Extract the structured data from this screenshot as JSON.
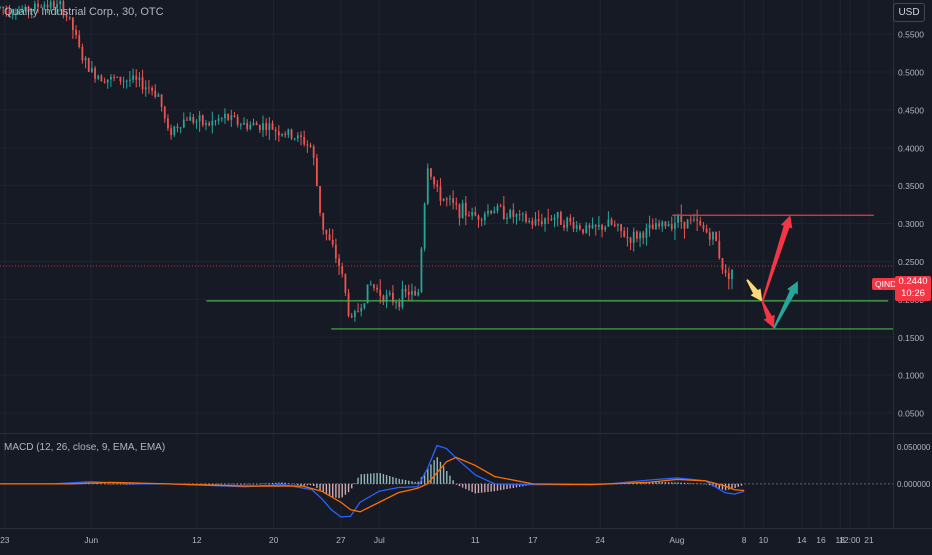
{
  "header": {
    "symbol_line": "Quality Industrial Corp., 30, OTC",
    "currency": "USD"
  },
  "current": {
    "ticker": "QIND",
    "price": "0.2440",
    "countdown": "10:26"
  },
  "macd": {
    "label": "MACD (12, 26, close, 9, EMA, EMA)",
    "ticks": [
      "0.050000",
      "0.000000"
    ]
  },
  "chart_data": [
    {
      "type": "candlestick",
      "title": "",
      "y_ticks": [
        0.05,
        0.1,
        0.15,
        0.2,
        0.25,
        0.3,
        0.35,
        0.4,
        0.45,
        0.5,
        0.55
      ],
      "y_tick_labels": [
        "0.0500",
        "0.1000",
        "0.1500",
        "0.2000",
        "0.2500",
        "0.3000",
        "0.3500",
        "0.4000",
        "0.4500",
        "0.5000",
        "0.5500"
      ],
      "x_tick_labels": [
        {
          "label": "23",
          "day": 23
        },
        {
          "label": "Jun",
          "day": 32
        },
        {
          "label": "12",
          "day": 43
        },
        {
          "label": "20",
          "day": 51
        },
        {
          "label": "27",
          "day": 58
        },
        {
          "label": "Jul",
          "day": 62
        },
        {
          "label": "11",
          "day": 72
        },
        {
          "label": "17",
          "day": 78
        },
        {
          "label": "24",
          "day": 85
        },
        {
          "label": "Aug",
          "day": 93
        },
        {
          "label": "8",
          "day": 100
        },
        {
          "label": "10",
          "day": 102
        },
        {
          "label": "14",
          "day": 106
        },
        {
          "label": "16",
          "day": 108
        },
        {
          "label": "18",
          "day": 110
        },
        {
          "label": "12:00",
          "day": 111
        },
        {
          "label": "21",
          "day": 113
        }
      ],
      "x_range_days": [
        22.5,
        115.5
      ],
      "y_range": [
        0.025,
        0.595
      ],
      "price_path": [
        [
          22.5,
          0.585
        ],
        [
          25,
          0.58
        ],
        [
          27,
          0.59
        ],
        [
          29,
          0.585
        ],
        [
          30,
          0.56
        ],
        [
          31,
          0.52
        ],
        [
          32,
          0.5
        ],
        [
          34,
          0.49
        ],
        [
          36,
          0.49
        ],
        [
          38,
          0.48
        ],
        [
          39,
          0.47
        ],
        [
          40,
          0.42
        ],
        [
          42,
          0.44
        ],
        [
          44,
          0.43
        ],
        [
          46,
          0.44
        ],
        [
          48,
          0.43
        ],
        [
          50,
          0.43
        ],
        [
          52,
          0.42
        ],
        [
          54,
          0.41
        ],
        [
          55,
          0.4
        ],
        [
          56,
          0.3
        ],
        [
          57,
          0.27
        ],
        [
          58,
          0.24
        ],
        [
          59,
          0.17
        ],
        [
          60,
          0.19
        ],
        [
          61,
          0.22
        ],
        [
          62,
          0.21
        ],
        [
          63,
          0.2
        ],
        [
          64,
          0.2
        ],
        [
          65,
          0.21
        ],
        [
          66,
          0.2
        ],
        [
          67,
          0.38
        ],
        [
          68,
          0.34
        ],
        [
          70,
          0.32
        ],
        [
          72,
          0.31
        ],
        [
          74,
          0.32
        ],
        [
          76,
          0.31
        ],
        [
          78,
          0.3
        ],
        [
          80,
          0.31
        ],
        [
          82,
          0.3
        ],
        [
          84,
          0.29
        ],
        [
          86,
          0.3
        ],
        [
          88,
          0.28
        ],
        [
          90,
          0.29
        ],
        [
          92,
          0.3
        ],
        [
          93,
          0.305
        ],
        [
          95,
          0.3
        ],
        [
          97,
          0.28
        ],
        [
          98,
          0.23
        ],
        [
          99,
          0.244
        ]
      ],
      "horizontal_levels": [
        {
          "price": 0.311,
          "from_day": 92.5,
          "to_day": 113.5,
          "color": "#f23645"
        },
        {
          "price": 0.198,
          "from_day": 44,
          "to_day": 115,
          "color": "#4caf50"
        },
        {
          "price": 0.161,
          "from_day": 57,
          "to_day": 116,
          "color": "#4caf50"
        },
        {
          "price": 0.244,
          "from_day": 22.5,
          "to_day": 118,
          "color": "#f23645",
          "dotted": true
        }
      ],
      "arrows": [
        {
          "from": [
            100.3,
            0.226
          ],
          "to": [
            101.9,
            0.197
          ],
          "color": "#fdd87a"
        },
        {
          "from": [
            101.9,
            0.197
          ],
          "to": [
            103.1,
            0.162
          ],
          "color": "#f23645"
        },
        {
          "from": [
            101.9,
            0.197
          ],
          "to": [
            104.8,
            0.311
          ],
          "color": "#f23645"
        },
        {
          "from": [
            103.1,
            0.162
          ],
          "to": [
            105.6,
            0.224
          ],
          "color": "#26a69a"
        }
      ]
    },
    {
      "type": "macd",
      "title": "MACD (12, 26, close, 9, EMA, EMA)",
      "y_ticks": [
        0.05,
        0.0
      ],
      "y_range": [
        -0.06,
        0.065
      ],
      "macd_line": [
        [
          22.5,
          0.0
        ],
        [
          28,
          0.0
        ],
        [
          32,
          0.003
        ],
        [
          36,
          0.0
        ],
        [
          40,
          0.0
        ],
        [
          44,
          -0.002
        ],
        [
          48,
          -0.004
        ],
        [
          52,
          -0.001
        ],
        [
          55,
          -0.008
        ],
        [
          56,
          -0.02
        ],
        [
          57,
          -0.035
        ],
        [
          58,
          -0.045
        ],
        [
          59,
          -0.044
        ],
        [
          60,
          -0.025
        ],
        [
          62,
          -0.01
        ],
        [
          64,
          -0.005
        ],
        [
          66,
          -0.004
        ],
        [
          67,
          0.02
        ],
        [
          68,
          0.052
        ],
        [
          69,
          0.048
        ],
        [
          70,
          0.035
        ],
        [
          72,
          0.012
        ],
        [
          74,
          0.0
        ],
        [
          78,
          -0.001
        ],
        [
          82,
          -0.001
        ],
        [
          86,
          0.0
        ],
        [
          90,
          0.005
        ],
        [
          93,
          0.008
        ],
        [
          96,
          0.004
        ],
        [
          98,
          -0.012
        ],
        [
          99,
          -0.014
        ],
        [
          100,
          -0.01
        ]
      ],
      "signal_line": [
        [
          22.5,
          0.0
        ],
        [
          30,
          0.0
        ],
        [
          34,
          0.002
        ],
        [
          40,
          0.0
        ],
        [
          48,
          -0.003
        ],
        [
          54,
          -0.003
        ],
        [
          56,
          -0.01
        ],
        [
          58,
          -0.025
        ],
        [
          59,
          -0.035
        ],
        [
          60,
          -0.038
        ],
        [
          62,
          -0.025
        ],
        [
          64,
          -0.012
        ],
        [
          66,
          -0.006
        ],
        [
          67,
          0.0
        ],
        [
          68,
          0.015
        ],
        [
          69,
          0.03
        ],
        [
          70,
          0.036
        ],
        [
          72,
          0.025
        ],
        [
          74,
          0.01
        ],
        [
          78,
          0.0
        ],
        [
          84,
          -0.001
        ],
        [
          90,
          0.002
        ],
        [
          93,
          0.006
        ],
        [
          96,
          0.004
        ],
        [
          98,
          -0.003
        ],
        [
          99,
          -0.008
        ],
        [
          100,
          -0.009
        ]
      ]
    }
  ]
}
